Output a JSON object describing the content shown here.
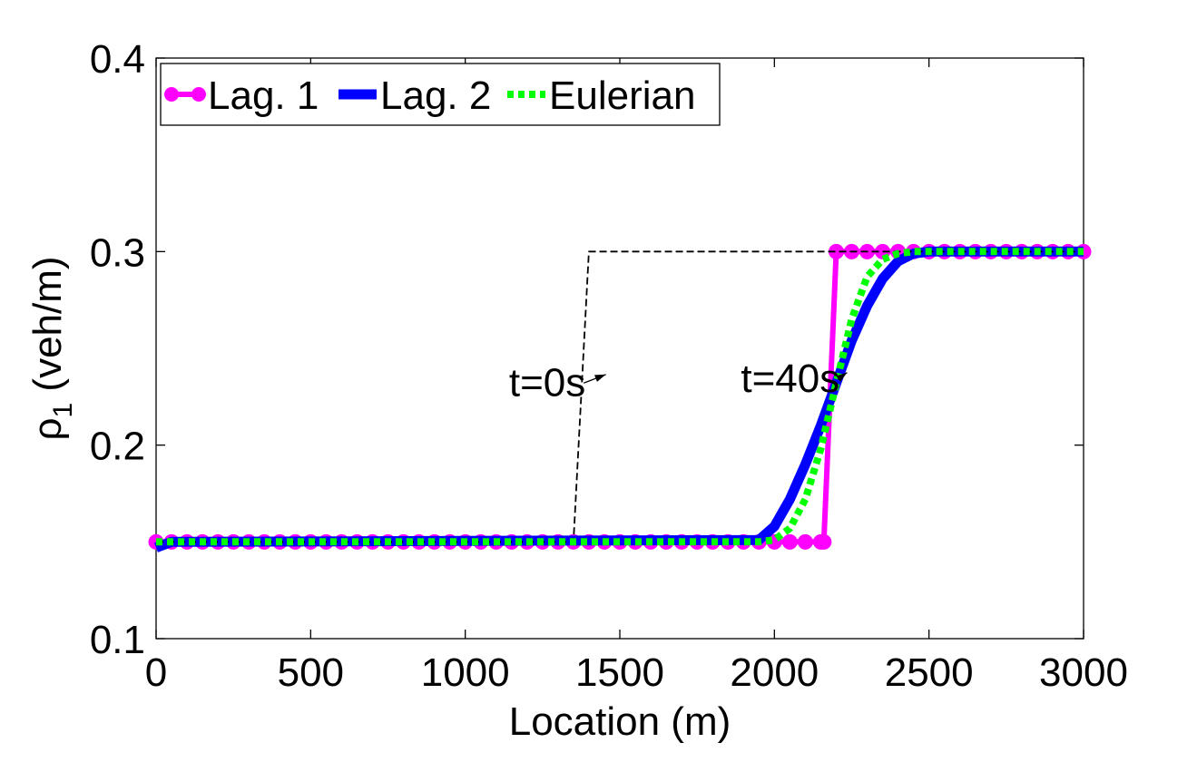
{
  "chart_data": {
    "type": "line",
    "xlabel": "Location (m)",
    "ylabel_main": "ρ",
    "ylabel_sub": "1",
    "ylabel_unit": "(veh/m)",
    "xlim": [
      0,
      3000
    ],
    "ylim": [
      0.1,
      0.4
    ],
    "xticks": [
      0,
      500,
      1000,
      1500,
      2000,
      2500,
      3000
    ],
    "yticks": [
      0.1,
      0.2,
      0.3,
      0.4
    ],
    "xtick_labels": [
      "0",
      "500",
      "1000",
      "1500",
      "2000",
      "2500",
      "3000"
    ],
    "ytick_labels": [
      "0.1",
      "0.2",
      "0.3",
      "0.4"
    ],
    "grid": false,
    "legend_placement": "top-left",
    "series": [
      {
        "name": "Lag. 1",
        "color": "#ff00ff",
        "style": "solid-with-circle-markers",
        "x": [
          0,
          50,
          100,
          150,
          200,
          250,
          300,
          350,
          400,
          450,
          500,
          550,
          600,
          650,
          700,
          750,
          800,
          850,
          900,
          950,
          1000,
          1050,
          1100,
          1150,
          1200,
          1250,
          1300,
          1350,
          1400,
          1450,
          1500,
          1550,
          1600,
          1650,
          1700,
          1750,
          1800,
          1850,
          1900,
          1950,
          2000,
          2050,
          2100,
          2150,
          2160,
          2200,
          2250,
          2300,
          2350,
          2400,
          2450,
          2500,
          2550,
          2600,
          2650,
          2700,
          2750,
          2800,
          2850,
          2900,
          2950,
          3000
        ],
        "y": [
          0.15,
          0.15,
          0.15,
          0.15,
          0.15,
          0.15,
          0.15,
          0.15,
          0.15,
          0.15,
          0.15,
          0.15,
          0.15,
          0.15,
          0.15,
          0.15,
          0.15,
          0.15,
          0.15,
          0.15,
          0.15,
          0.15,
          0.15,
          0.15,
          0.15,
          0.15,
          0.15,
          0.15,
          0.15,
          0.15,
          0.15,
          0.15,
          0.15,
          0.15,
          0.15,
          0.15,
          0.15,
          0.15,
          0.15,
          0.15,
          0.15,
          0.15,
          0.15,
          0.15,
          0.15,
          0.3,
          0.3,
          0.3,
          0.3,
          0.3,
          0.3,
          0.3,
          0.3,
          0.3,
          0.3,
          0.3,
          0.3,
          0.3,
          0.3,
          0.3,
          0.3,
          0.3
        ]
      },
      {
        "name": "Lag. 2",
        "color": "#0000ff",
        "style": "solid-thick",
        "x": [
          0,
          50,
          100,
          1950,
          2000,
          2050,
          2100,
          2150,
          2200,
          2250,
          2300,
          2350,
          2400,
          2450,
          2500,
          3000
        ],
        "y": [
          0.147,
          0.15,
          0.15,
          0.151,
          0.158,
          0.172,
          0.19,
          0.21,
          0.232,
          0.254,
          0.272,
          0.286,
          0.295,
          0.299,
          0.3,
          0.3
        ]
      },
      {
        "name": "Eulerian",
        "color": "#00ff00",
        "style": "dotted-thick",
        "x": [
          0,
          1950,
          2000,
          2050,
          2100,
          2150,
          2200,
          2250,
          2300,
          2350,
          2400,
          2450,
          3000
        ],
        "y": [
          0.15,
          0.15,
          0.151,
          0.157,
          0.172,
          0.198,
          0.232,
          0.265,
          0.287,
          0.296,
          0.299,
          0.3,
          0.3
        ]
      },
      {
        "name": "",
        "color": "#000000",
        "style": "dashed",
        "x": [
          0,
          1350,
          1400,
          3000
        ],
        "y": [
          0.15,
          0.15,
          0.3,
          0.3
        ]
      }
    ],
    "annotations": [
      {
        "text": "t=0s",
        "text_x": 1300,
        "text_y": 0.233,
        "arrow_to_x": 1455,
        "arrow_to_y": 0.2365
      },
      {
        "text": "t=40s",
        "text_x": 2050,
        "text_y": 0.235,
        "arrow_to_x": 2235,
        "arrow_to_y": 0.2375
      }
    ]
  }
}
